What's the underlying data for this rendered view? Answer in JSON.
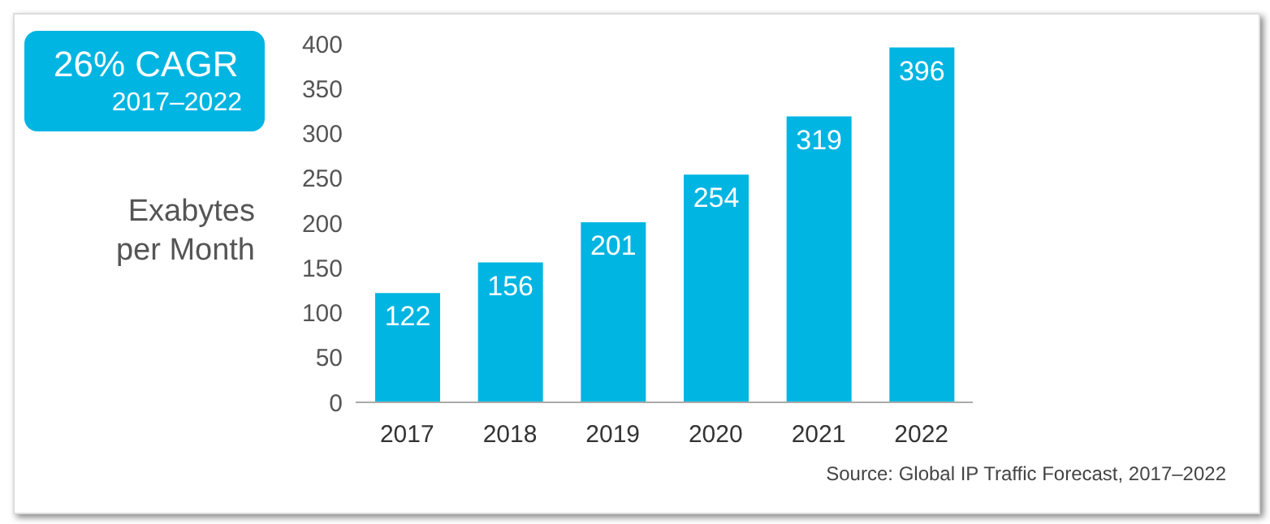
{
  "chart_data": {
    "type": "bar",
    "ylabel": "Exabytes per Month",
    "categories": [
      "2017",
      "2018",
      "2019",
      "2020",
      "2021",
      "2022"
    ],
    "values": [
      122,
      156,
      201,
      254,
      319,
      396
    ],
    "color": "#00b5e2",
    "ylim": [
      0,
      400
    ],
    "yticks": [
      0,
      50,
      100,
      150,
      200,
      250,
      300,
      350,
      400
    ],
    "data_labels": true,
    "annotations": [
      "26% CAGR",
      "2017–2022",
      "Source: Global IP Traffic Forecast, 2017–2022"
    ]
  }
}
